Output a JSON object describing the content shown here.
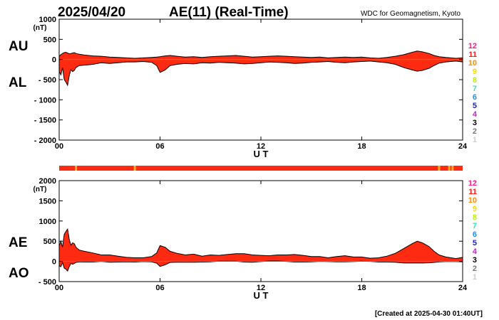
{
  "header": {
    "date": "2025/04/20",
    "title": "AE(11) (Real-Time)",
    "source": "WDC for Geomagnetism, Kyoto"
  },
  "footer": {
    "created": "[Created at 2025-04-30 01:40UT]"
  },
  "colors": {
    "fill": "#ff2a12",
    "stroke": "#000000",
    "frame": "#000000",
    "baseline": "#cc8800",
    "stripe_main": "#ff2a12",
    "stripe_mark": "#ffb020"
  },
  "station_legend": [
    {
      "label": "12",
      "color": "#ff1a8c"
    },
    {
      "label": "11",
      "color": "#ff1a1a"
    },
    {
      "label": "10",
      "color": "#ff8c00"
    },
    {
      "label": "9",
      "color": "#ffd700"
    },
    {
      "label": "8",
      "color": "#b8f000"
    },
    {
      "label": "7",
      "color": "#30e0c0"
    },
    {
      "label": "6",
      "color": "#1e8cff"
    },
    {
      "label": "5",
      "color": "#2020cc"
    },
    {
      "label": "4",
      "color": "#d020d0"
    },
    {
      "label": "3",
      "color": "#000000"
    },
    {
      "label": "2",
      "color": "#777777"
    },
    {
      "label": "1",
      "color": "#cccccc"
    }
  ],
  "chart_data": [
    {
      "type": "area",
      "id": "au-al",
      "series_labels": [
        "AU",
        "AL"
      ],
      "unit": "(nT)",
      "xlabel": "U T",
      "xlim": [
        0,
        24
      ],
      "xticks": [
        0,
        6,
        12,
        18,
        24
      ],
      "xtick_labels": [
        "00",
        "06",
        "12",
        "18",
        "24"
      ],
      "ylim": [
        -2000,
        1000
      ],
      "yticks": [
        1000,
        500,
        0,
        -500,
        -1000,
        -1500,
        -2000
      ],
      "ytick_labels": [
        "1000",
        "500",
        "0",
        "- 500",
        "- 1000",
        "- 1500",
        "- 2000"
      ],
      "x": [
        0.0,
        0.1,
        0.2,
        0.3,
        0.4,
        0.5,
        0.6,
        0.7,
        0.8,
        0.9,
        1.0,
        1.2,
        1.5,
        2.0,
        2.5,
        3.0,
        3.5,
        4.0,
        4.5,
        5.0,
        5.5,
        5.8,
        6.0,
        6.3,
        6.6,
        7.0,
        7.5,
        8.0,
        8.5,
        9.0,
        9.5,
        10.0,
        10.5,
        11.0,
        11.5,
        12.0,
        12.5,
        13.0,
        13.5,
        14.0,
        14.5,
        15.0,
        15.5,
        16.0,
        16.5,
        17.0,
        17.5,
        18.0,
        18.5,
        19.0,
        19.5,
        20.0,
        20.5,
        21.0,
        21.3,
        21.6,
        22.0,
        22.3,
        22.6,
        23.0,
        23.3,
        23.6,
        24.0
      ],
      "upper": [
        80,
        120,
        150,
        170,
        180,
        160,
        140,
        150,
        160,
        170,
        150,
        130,
        110,
        90,
        80,
        60,
        50,
        40,
        30,
        40,
        50,
        60,
        70,
        90,
        100,
        80,
        60,
        70,
        50,
        70,
        80,
        90,
        100,
        80,
        60,
        70,
        80,
        90,
        80,
        70,
        60,
        50,
        60,
        40,
        50,
        60,
        50,
        60,
        40,
        30,
        50,
        80,
        120,
        180,
        210,
        190,
        150,
        100,
        70,
        50,
        40,
        30,
        40
      ],
      "lower": [
        -300,
        -380,
        -200,
        -500,
        -560,
        -640,
        -400,
        -250,
        -300,
        -270,
        -200,
        -150,
        -140,
        -120,
        -80,
        -100,
        -80,
        -60,
        -60,
        -50,
        -70,
        -150,
        -320,
        -260,
        -150,
        -120,
        -100,
        -110,
        -80,
        -90,
        -70,
        -80,
        -90,
        -110,
        -100,
        -80,
        -60,
        -70,
        -80,
        -100,
        -90,
        -70,
        -60,
        -50,
        -70,
        -80,
        -60,
        -50,
        -40,
        -60,
        -80,
        -120,
        -200,
        -260,
        -290,
        -270,
        -220,
        -150,
        -90,
        -60,
        -50,
        -40,
        -60
      ]
    },
    {
      "type": "area",
      "id": "ae-ao",
      "series_labels": [
        "AE",
        "AO"
      ],
      "unit": "(nT)",
      "xlabel": "U T",
      "xlim": [
        0,
        24
      ],
      "xticks": [
        0,
        6,
        12,
        18,
        24
      ],
      "xtick_labels": [
        "00",
        "06",
        "12",
        "18",
        "24"
      ],
      "ylim": [
        -500,
        2000
      ],
      "yticks": [
        2000,
        1500,
        1000,
        500,
        0,
        -500
      ],
      "ytick_labels": [
        "2000",
        "1500",
        "1000",
        "500",
        "0",
        "- 500"
      ],
      "x": [
        0.0,
        0.1,
        0.2,
        0.3,
        0.4,
        0.5,
        0.6,
        0.7,
        0.8,
        0.9,
        1.0,
        1.2,
        1.5,
        2.0,
        2.5,
        3.0,
        3.5,
        4.0,
        4.5,
        5.0,
        5.5,
        5.8,
        6.0,
        6.3,
        6.6,
        7.0,
        7.5,
        8.0,
        8.5,
        9.0,
        9.5,
        10.0,
        10.5,
        11.0,
        11.5,
        12.0,
        12.5,
        13.0,
        13.5,
        14.0,
        14.5,
        15.0,
        15.5,
        16.0,
        16.5,
        17.0,
        17.5,
        18.0,
        18.5,
        19.0,
        19.5,
        20.0,
        20.5,
        21.0,
        21.3,
        21.6,
        22.0,
        22.3,
        22.6,
        23.0,
        23.3,
        23.6,
        24.0
      ],
      "upper": [
        380,
        500,
        350,
        670,
        740,
        800,
        540,
        400,
        460,
        440,
        350,
        280,
        250,
        210,
        160,
        160,
        130,
        100,
        90,
        90,
        120,
        210,
        390,
        350,
        250,
        200,
        160,
        180,
        130,
        160,
        150,
        170,
        190,
        190,
        160,
        150,
        140,
        160,
        160,
        170,
        150,
        120,
        120,
        90,
        120,
        140,
        110,
        110,
        80,
        90,
        130,
        200,
        320,
        440,
        500,
        460,
        370,
        250,
        160,
        110,
        90,
        70,
        100
      ],
      "lower": [
        -110,
        -130,
        -25,
        -165,
        -190,
        -240,
        -130,
        -50,
        -70,
        -50,
        -25,
        -10,
        -15,
        -15,
        0,
        -20,
        -15,
        -10,
        -15,
        -5,
        -10,
        -45,
        -125,
        -85,
        -25,
        -20,
        -20,
        -20,
        -15,
        -10,
        5,
        5,
        5,
        -15,
        -20,
        -5,
        10,
        10,
        0,
        -15,
        -15,
        -10,
        0,
        -5,
        -10,
        -10,
        -5,
        5,
        0,
        -15,
        -15,
        -20,
        -40,
        -40,
        -40,
        -40,
        -35,
        -25,
        -10,
        -5,
        -5,
        -5,
        -10
      ]
    }
  ],
  "status_stripe": {
    "marks_hours": [
      1.0,
      4.5,
      22.6,
      23.2,
      23.4
    ]
  }
}
